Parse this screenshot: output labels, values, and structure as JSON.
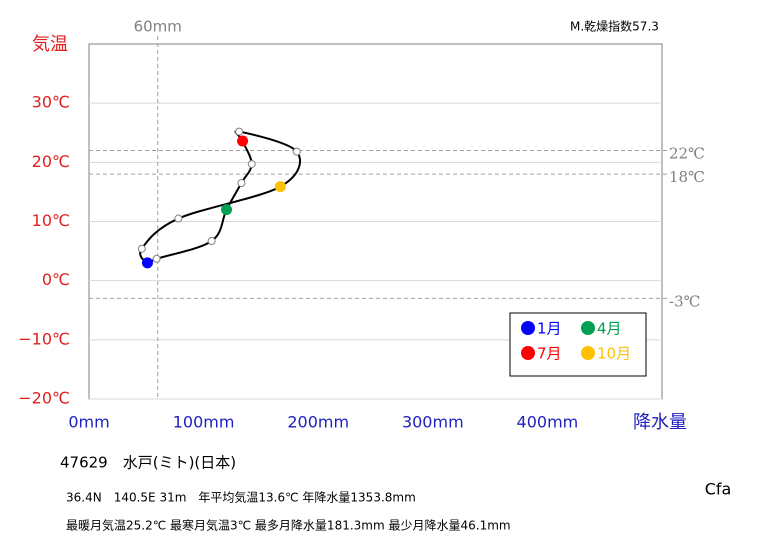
{
  "chart_data": {
    "type": "line",
    "corner_note": "M.乾燥指数57.3",
    "y_label": "気温",
    "x_label": "降水量",
    "xlim": [
      0,
      500
    ],
    "xticks": [
      {
        "value": 0,
        "label": "0mm"
      },
      {
        "value": 100,
        "label": "100mm"
      },
      {
        "value": 200,
        "label": "200mm"
      },
      {
        "value": 300,
        "label": "300mm"
      },
      {
        "value": 400,
        "label": "400mm"
      }
    ],
    "ylim": [
      -20,
      40
    ],
    "yticks": [
      {
        "value": -20,
        "label": "−20℃"
      },
      {
        "value": -10,
        "label": "−10℃"
      },
      {
        "value": 0,
        "label": "0℃"
      },
      {
        "value": 10,
        "label": "10℃"
      },
      {
        "value": 20,
        "label": "20℃"
      },
      {
        "value": 30,
        "label": "30℃"
      }
    ],
    "grid": true,
    "reference_lines": {
      "x": [
        {
          "value": 60,
          "label": "60mm"
        }
      ],
      "y": [
        {
          "value": 22,
          "label": "22℃"
        },
        {
          "value": 18,
          "label": "18℃"
        },
        {
          "value": -3,
          "label": "-3℃"
        }
      ]
    },
    "categories": [
      "1月",
      null,
      null,
      "4月",
      null,
      null,
      "7月",
      null,
      null,
      "10月",
      null,
      null
    ],
    "x": [
      51,
      59,
      107,
      120,
      133,
      142,
      134,
      131,
      181.3,
      167,
      78,
      46.1
    ],
    "series": [
      {
        "color": "#000000",
        "values": [
          3.0,
          3.7,
          6.7,
          12.0,
          16.5,
          19.7,
          23.6,
          25.2,
          21.8,
          15.9,
          10.5,
          5.4
        ]
      }
    ],
    "marker_colors": [
      "#0000ff",
      "#ffffff",
      "#ffffff",
      "#00a050",
      "#ffffff",
      "#ffffff",
      "#ff0000",
      "#ffffff",
      "#ffffff",
      "#ffc000",
      "#ffffff",
      "#ffffff"
    ],
    "legend": "lower right",
    "station": "47629　水戸(ミト)(日本)",
    "info_lines": [
      "36.4N　140.5E 31m　年平均気温13.6℃ 年降水量1353.8mm",
      "最暖月気温25.2℃ 最寒月気温3℃ 最多月降水量181.3mm 最少月降水量46.1mm"
    ],
    "climate_class": "Cfa"
  }
}
